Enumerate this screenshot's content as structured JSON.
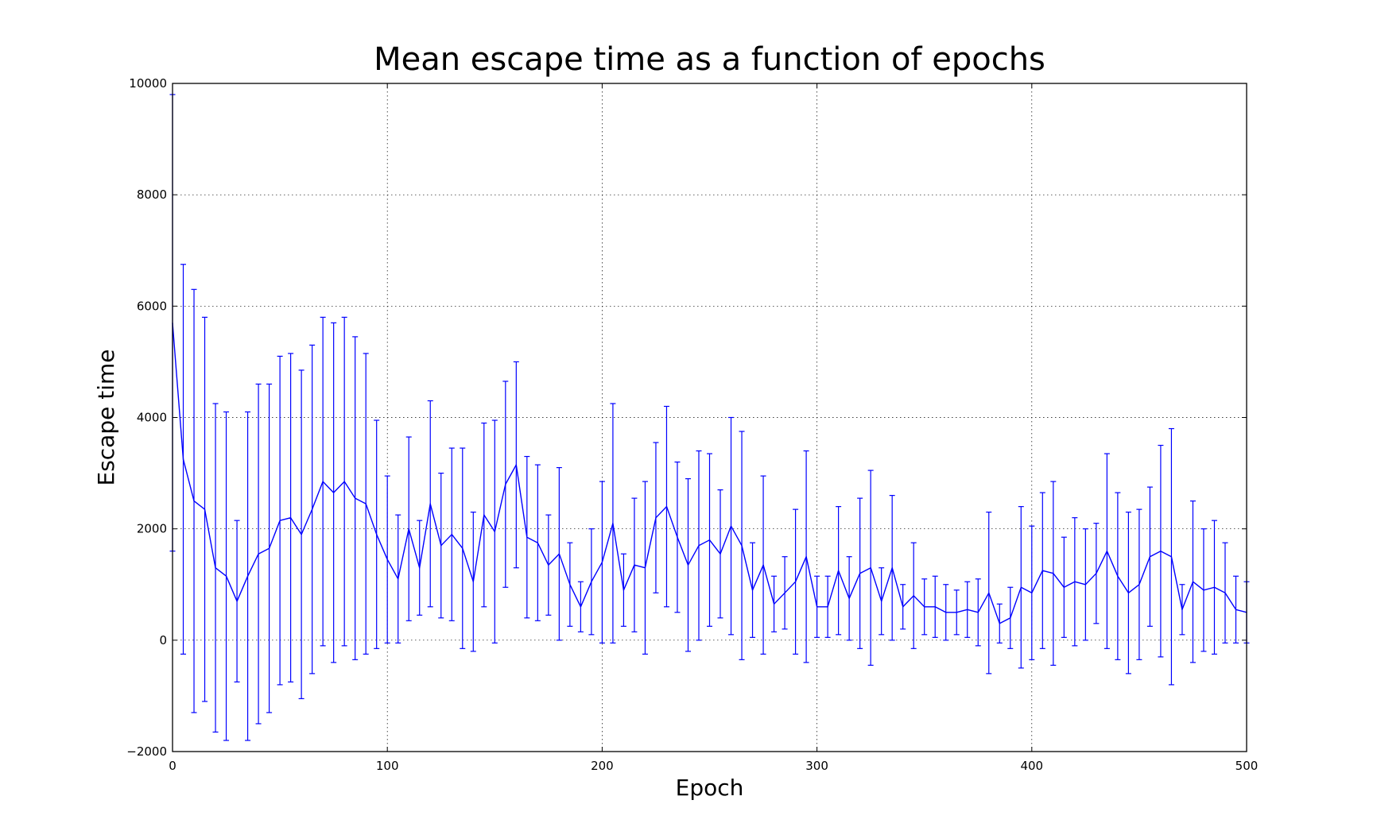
{
  "chart_data": {
    "type": "line",
    "title": "Mean escape time as a function of epochs",
    "xlabel": "Epoch",
    "ylabel": "Escape time",
    "xlim": [
      0,
      500
    ],
    "ylim": [
      -2000,
      10000
    ],
    "xticks": [
      0,
      100,
      200,
      300,
      400,
      500
    ],
    "yticks": [
      -2000,
      0,
      2000,
      4000,
      6000,
      8000,
      10000
    ],
    "xtick_labels": [
      "0",
      "100",
      "200",
      "300",
      "400",
      "500"
    ],
    "ytick_labels": [
      "−2000",
      "0",
      "2000",
      "4000",
      "6000",
      "8000",
      "10000"
    ],
    "grid": true,
    "grid_style": "dotted",
    "error_bars": true,
    "series": [
      {
        "color": "#0000ff",
        "x": [
          0,
          5,
          10,
          15,
          20,
          25,
          30,
          35,
          40,
          45,
          50,
          55,
          60,
          65,
          70,
          75,
          80,
          85,
          90,
          95,
          100,
          105,
          110,
          115,
          120,
          125,
          130,
          135,
          140,
          145,
          150,
          155,
          160,
          165,
          170,
          175,
          180,
          185,
          190,
          195,
          200,
          205,
          210,
          215,
          220,
          225,
          230,
          235,
          240,
          245,
          250,
          255,
          260,
          265,
          270,
          275,
          280,
          285,
          290,
          295,
          300,
          305,
          310,
          315,
          320,
          325,
          330,
          335,
          340,
          345,
          350,
          355,
          360,
          365,
          370,
          375,
          380,
          385,
          390,
          395,
          400,
          405,
          410,
          415,
          420,
          425,
          430,
          435,
          440,
          445,
          450,
          455,
          460,
          465,
          470,
          475,
          480,
          485,
          490,
          495,
          500
        ],
        "y": [
          5700,
          3250,
          2500,
          2350,
          1300,
          1150,
          700,
          1150,
          1550,
          1650,
          2150,
          2200,
          1900,
          2350,
          2850,
          2650,
          2850,
          2550,
          2450,
          1900,
          1450,
          1100,
          2000,
          1300,
          2450,
          1700,
          1900,
          1650,
          1050,
          2250,
          1950,
          2800,
          3150,
          1850,
          1750,
          1350,
          1550,
          1000,
          600,
          1050,
          1400,
          2100,
          900,
          1350,
          1300,
          2200,
          2400,
          1850,
          1350,
          1700,
          1800,
          1550,
          2050,
          1700,
          900,
          1350,
          650,
          850,
          1050,
          1500,
          600,
          600,
          1250,
          750,
          1200,
          1300,
          700,
          1300,
          600,
          800,
          600,
          600,
          500,
          500,
          550,
          500,
          850,
          300,
          400,
          950,
          850,
          1250,
          1200,
          950,
          1050,
          1000,
          1200,
          1600,
          1150,
          850,
          1000,
          1500,
          1600,
          1500,
          550,
          1050,
          900,
          950,
          850,
          550,
          500
        ],
        "err": [
          4100,
          3500,
          3800,
          3450,
          2950,
          2950,
          1450,
          2950,
          3050,
          2950,
          2950,
          2950,
          2950,
          2950,
          2950,
          3050,
          2950,
          2900,
          2700,
          2050,
          1500,
          1150,
          1650,
          850,
          1850,
          1300,
          1550,
          1800,
          1250,
          1650,
          2000,
          1850,
          1850,
          1450,
          1400,
          900,
          1550,
          750,
          450,
          950,
          1450,
          2150,
          650,
          1200,
          1550,
          1350,
          1800,
          1350,
          1550,
          1700,
          1550,
          1150,
          1950,
          2050,
          850,
          1600,
          500,
          650,
          1300,
          1900,
          550,
          550,
          1150,
          750,
          1350,
          1750,
          600,
          1300,
          400,
          950,
          500,
          550,
          500,
          400,
          500,
          600,
          1450,
          350,
          550,
          1450,
          1200,
          1400,
          1650,
          900,
          1150,
          1000,
          900,
          1750,
          1500,
          1450,
          1350,
          1250,
          1900,
          2300,
          450,
          1450,
          1100,
          1200,
          900,
          600,
          550
        ]
      }
    ]
  }
}
